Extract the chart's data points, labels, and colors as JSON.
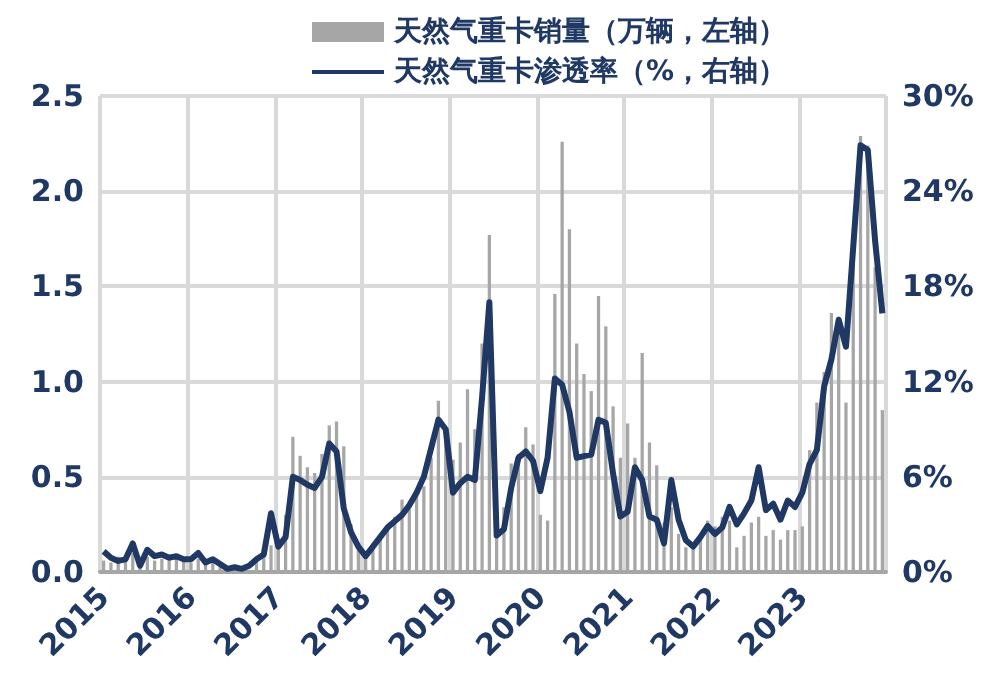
{
  "chart_data": {
    "type": "bar",
    "categories": [
      "2015",
      null,
      null,
      null,
      null,
      null,
      null,
      null,
      null,
      null,
      null,
      null,
      "2016",
      null,
      null,
      null,
      null,
      null,
      null,
      null,
      null,
      null,
      null,
      null,
      "2017",
      null,
      null,
      null,
      null,
      null,
      null,
      null,
      null,
      null,
      null,
      null,
      "2018",
      null,
      null,
      null,
      null,
      null,
      null,
      null,
      null,
      null,
      null,
      null,
      "2019",
      null,
      null,
      null,
      null,
      null,
      null,
      null,
      null,
      null,
      null,
      null,
      "2020",
      null,
      null,
      null,
      null,
      null,
      null,
      null,
      null,
      null,
      null,
      null,
      "2021",
      null,
      null,
      null,
      null,
      null,
      null,
      null,
      null,
      null,
      null,
      null,
      "2022",
      null,
      null,
      null,
      null,
      null,
      null,
      null,
      null,
      null,
      null,
      null,
      "2023",
      null,
      null,
      null,
      null,
      null,
      null,
      null,
      null,
      null,
      null,
      null
    ],
    "series": [
      {
        "name": "天然气重卡销量（万辆，左轴）",
        "color": "#a6a6a6",
        "values": [
          0.06,
          0.05,
          0.08,
          0.07,
          0.1,
          0.03,
          0.08,
          0.06,
          0.07,
          0.06,
          0.08,
          0.07,
          0.05,
          0.07,
          0.04,
          0.06,
          0.04,
          null,
          null,
          null,
          null,
          0.06,
          0.08,
          0.14,
          0.15,
          0.3,
          0.71,
          0.61,
          0.55,
          0.52,
          0.62,
          0.77,
          0.79,
          0.66,
          0.25,
          0.12,
          0.1,
          0.15,
          0.2,
          0.24,
          0.29,
          0.38,
          0.33,
          0.4,
          0.45,
          0.6,
          0.9,
          0.7,
          0.59,
          0.68,
          0.96,
          0.75,
          1.2,
          1.77,
          0.2,
          0.34,
          0.57,
          0.62,
          0.76,
          0.67,
          0.3,
          0.27,
          1.46,
          2.26,
          1.8,
          1.2,
          1.04,
          0.95,
          1.45,
          1.29,
          0.87,
          0.6,
          0.78,
          0.6,
          1.15,
          0.68,
          0.56,
          0.26,
          0.34,
          0.2,
          0.13,
          0.12,
          0.17,
          0.27,
          0.24,
          0.29,
          0.27,
          0.13,
          0.19,
          0.26,
          0.29,
          0.19,
          0.22,
          0.17,
          0.22,
          0.22,
          0.24,
          0.64,
          0.89,
          1.05,
          1.36,
          1.34,
          0.89,
          1.8,
          2.29,
          2.24,
          1.6,
          0.85
        ]
      },
      {
        "name": "天然气重卡渗透率（%，右轴）",
        "type": "line",
        "axis": "y2",
        "color": "#1f3864",
        "values": [
          1.3,
          0.9,
          0.7,
          0.8,
          1.8,
          0.4,
          1.4,
          1.0,
          1.1,
          0.9,
          1.0,
          0.8,
          0.8,
          1.2,
          0.6,
          0.8,
          0.5,
          0.2,
          0.3,
          0.2,
          0.4,
          0.8,
          1.1,
          3.7,
          1.6,
          2.2,
          6.0,
          5.8,
          5.5,
          5.3,
          6.0,
          8.1,
          7.6,
          4.0,
          2.5,
          1.6,
          1.0,
          1.6,
          2.2,
          2.8,
          3.2,
          3.6,
          4.2,
          5.0,
          6.0,
          7.8,
          9.6,
          9.0,
          5.0,
          5.6,
          6.0,
          5.8,
          11.0,
          17.0,
          2.3,
          2.7,
          5.3,
          7.2,
          7.6,
          7.0,
          5.1,
          7.2,
          12.2,
          11.8,
          10.1,
          7.2,
          7.3,
          7.4,
          9.6,
          9.4,
          6.2,
          3.5,
          3.8,
          6.6,
          5.8,
          3.5,
          3.3,
          1.8,
          5.8,
          3.3,
          2.0,
          1.6,
          2.2,
          2.9,
          2.4,
          2.8,
          4.1,
          3.0,
          3.7,
          4.5,
          6.6,
          3.9,
          4.3,
          3.3,
          4.5,
          4.1,
          5.0,
          6.8,
          7.7,
          11.7,
          13.4,
          15.9,
          14.2,
          20.5,
          26.9,
          26.6,
          20.9,
          16.3
        ]
      }
    ],
    "ylim": [
      0,
      2.5
    ],
    "yticks": [
      {
        "value": 0,
        "label": "0.0"
      },
      {
        "value": 0.5,
        "label": "0.5"
      },
      {
        "value": 1,
        "label": "1.0"
      },
      {
        "value": 1.5,
        "label": "1.5"
      },
      {
        "value": 2,
        "label": "2.0"
      },
      {
        "value": 2.5,
        "label": "2.5"
      }
    ],
    "y2lim": [
      0,
      30
    ],
    "y2ticks": [
      {
        "value": 0,
        "label": "0%"
      },
      {
        "value": 6,
        "label": "6%"
      },
      {
        "value": 12,
        "label": "12%"
      },
      {
        "value": 18,
        "label": "18%"
      },
      {
        "value": 24,
        "label": "24%"
      },
      {
        "value": 30,
        "label": "30%"
      }
    ],
    "grid": true,
    "legend": "top",
    "marker": "none"
  }
}
